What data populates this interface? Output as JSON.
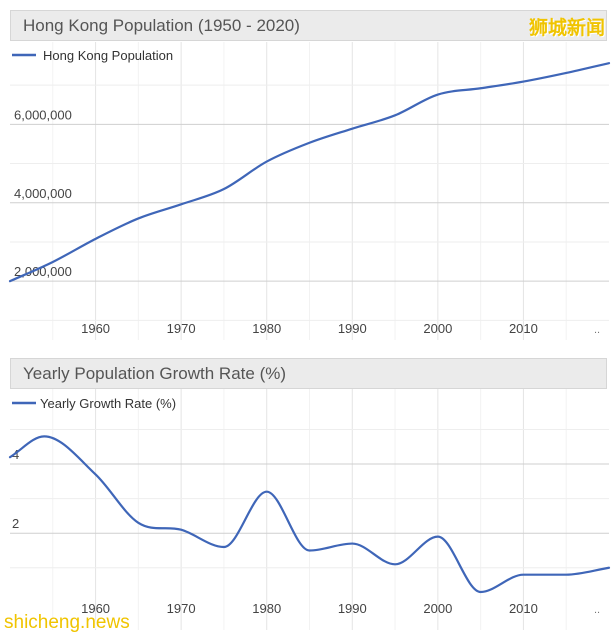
{
  "chart_data": [
    {
      "type": "line",
      "title": "Hong Kong Population (1950 - 2020)",
      "xlabel": "",
      "ylabel": "",
      "legend_position": "top-left",
      "grid": true,
      "xlim": [
        1950,
        2020
      ],
      "ylim": [
        500000,
        8100000
      ],
      "xticks": [
        1960,
        1970,
        1980,
        1990,
        2000,
        2010
      ],
      "xtick_labels": [
        "1960",
        "1970",
        "1980",
        "1990",
        "2000",
        "2010"
      ],
      "yticks": [
        2000000,
        4000000,
        6000000
      ],
      "ytick_labels": [
        "2,000,000",
        "4,000,000",
        "6,000,000"
      ],
      "trailing_label": "..",
      "series": [
        {
          "name": "Hong Kong Population",
          "color": "#3f66b8",
          "x": [
            1950,
            1955,
            1960,
            1965,
            1970,
            1975,
            1980,
            1985,
            1990,
            1995,
            2000,
            2005,
            2010,
            2015,
            2020
          ],
          "y": [
            2000000,
            2490000,
            3080000,
            3600000,
            3960000,
            4350000,
            5050000,
            5530000,
            5890000,
            6230000,
            6760000,
            6920000,
            7090000,
            7310000,
            7560000
          ]
        }
      ]
    },
    {
      "type": "line",
      "title": "Yearly Population Growth Rate (%)",
      "xlabel": "",
      "ylabel": "",
      "legend_position": "top-left",
      "grid": true,
      "xlim": [
        1950,
        2020
      ],
      "ylim": [
        -0.8,
        6.2
      ],
      "xticks": [
        1960,
        1970,
        1980,
        1990,
        2000,
        2010
      ],
      "xtick_labels": [
        "1960",
        "1970",
        "1980",
        "1990",
        "2000",
        "2010"
      ],
      "yticks": [
        2,
        4
      ],
      "ytick_labels": [
        "2",
        "4"
      ],
      "trailing_label": "..",
      "series": [
        {
          "name": "Yearly Growth Rate (%)",
          "color": "#3f66b8",
          "x": [
            1950,
            1954,
            1960,
            1965,
            1970,
            1975,
            1980,
            1985,
            1990,
            1995,
            2000,
            2005,
            2010,
            2015,
            2020
          ],
          "y": [
            4.2,
            4.8,
            3.7,
            2.3,
            2.1,
            1.6,
            3.2,
            1.5,
            1.7,
            1.1,
            1.9,
            0.3,
            0.8,
            0.8,
            1.0
          ]
        }
      ]
    }
  ],
  "watermarks": {
    "top_right": "狮城新闻",
    "bottom_left": "shicheng.news"
  }
}
